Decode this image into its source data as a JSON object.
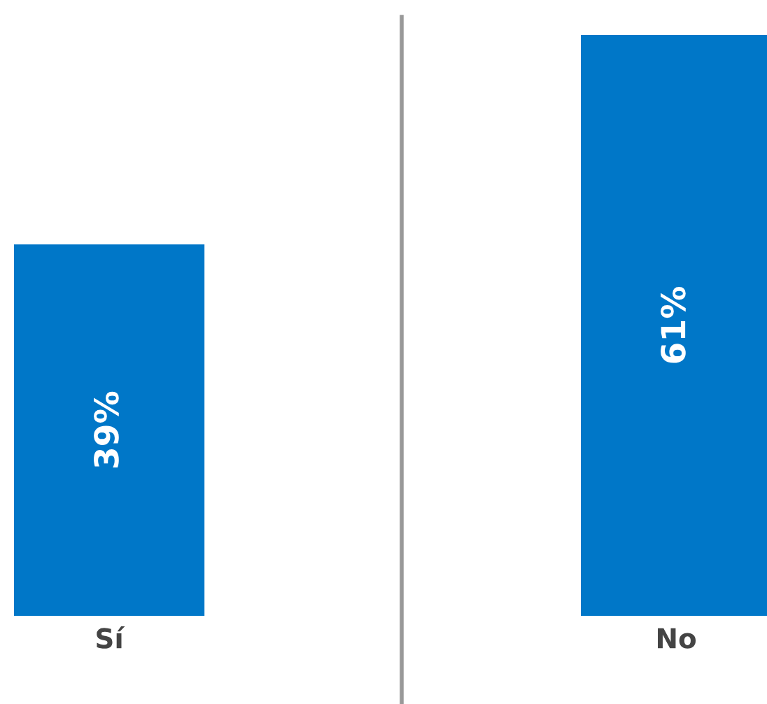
{
  "chart_data": {
    "type": "bar",
    "categories": [
      "Sí",
      "No"
    ],
    "values": [
      39,
      61
    ],
    "color": "#0077c8",
    "value_labels": [
      "39%",
      "61%"
    ]
  }
}
